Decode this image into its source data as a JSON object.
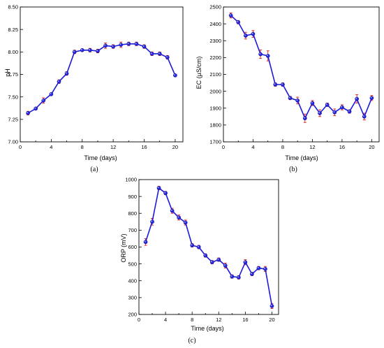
{
  "colors": {
    "line": "#1a1adb",
    "marker": "#2626e0",
    "error": "#e0201a",
    "axis": "#000000"
  },
  "chart_data": [
    {
      "id": "a",
      "type": "line",
      "panel_label": "(a)",
      "title": "",
      "xlabel": "Time (days)",
      "ylabel": "pH",
      "xlim": [
        0,
        21
      ],
      "ylim": [
        7.0,
        8.5
      ],
      "xticks": [
        0,
        4,
        8,
        12,
        16,
        20
      ],
      "yticks": [
        7.0,
        7.25,
        7.5,
        7.75,
        8.0,
        8.25,
        8.5
      ],
      "ytick_labels": [
        "7.00",
        "7.25",
        "7.50",
        "7.75",
        "8.00",
        "8.25",
        "8.50"
      ],
      "grid": false,
      "legend": "none",
      "series": [
        {
          "x": [
            1,
            2,
            3,
            4,
            5,
            6,
            7,
            8,
            9,
            10,
            11,
            12,
            13,
            14,
            15,
            16,
            17,
            18,
            19,
            20
          ],
          "values": [
            7.32,
            7.37,
            7.46,
            7.53,
            7.67,
            7.76,
            8.0,
            8.02,
            8.02,
            8.01,
            8.07,
            8.06,
            8.08,
            8.09,
            8.09,
            8.06,
            7.98,
            7.98,
            7.94,
            7.74
          ],
          "error": [
            0.02,
            0.01,
            0.03,
            0.01,
            0.02,
            0.02,
            0.02,
            0.01,
            0.02,
            0.02,
            0.03,
            0.02,
            0.03,
            0.02,
            0.02,
            0.02,
            0.02,
            0.02,
            0.02,
            0.01
          ]
        }
      ]
    },
    {
      "id": "b",
      "type": "line",
      "panel_label": "(b)",
      "title": "",
      "xlabel": "Time (days)",
      "ylabel": "EC (µS/cm)",
      "xlim": [
        0,
        21
      ],
      "ylim": [
        1700,
        2500
      ],
      "xticks": [
        0,
        4,
        8,
        12,
        16,
        20
      ],
      "yticks": [
        1700,
        1800,
        1900,
        2000,
        2100,
        2200,
        2300,
        2400,
        2500
      ],
      "ytick_labels": [
        "1700",
        "1800",
        "1900",
        "2000",
        "2100",
        "2200",
        "2300",
        "2400",
        "2500"
      ],
      "grid": false,
      "legend": "none",
      "series": [
        {
          "x": [
            1,
            2,
            3,
            4,
            5,
            6,
            7,
            8,
            9,
            10,
            11,
            12,
            13,
            14,
            15,
            16,
            17,
            18,
            19,
            20
          ],
          "values": [
            2450,
            2410,
            2330,
            2340,
            2220,
            2210,
            2040,
            2040,
            1960,
            1945,
            1840,
            1930,
            1870,
            1920,
            1875,
            1905,
            1880,
            1955,
            1850,
            1960
          ],
          "error": [
            15,
            10,
            20,
            20,
            25,
            30,
            10,
            10,
            10,
            20,
            25,
            15,
            20,
            10,
            20,
            15,
            10,
            25,
            20,
            15
          ]
        }
      ]
    },
    {
      "id": "c",
      "type": "line",
      "panel_label": "(c)",
      "title": "",
      "xlabel": "Time (days)",
      "ylabel": "ORP (mV)",
      "xlim": [
        0,
        21
      ],
      "ylim": [
        200,
        1000
      ],
      "xticks": [
        0,
        4,
        8,
        12,
        16,
        20
      ],
      "yticks": [
        200,
        300,
        400,
        500,
        600,
        700,
        800,
        900,
        1000
      ],
      "ytick_labels": [
        "200",
        "300",
        "400",
        "500",
        "600",
        "700",
        "800",
        "900",
        "1000"
      ],
      "grid": false,
      "legend": "none",
      "series": [
        {
          "x": [
            1,
            2,
            3,
            4,
            5,
            6,
            7,
            8,
            9,
            10,
            11,
            12,
            13,
            14,
            15,
            16,
            17,
            18,
            19,
            20
          ],
          "values": [
            630,
            750,
            950,
            920,
            815,
            775,
            745,
            610,
            600,
            550,
            510,
            525,
            490,
            425,
            420,
            510,
            440,
            475,
            470,
            250
          ],
          "error": [
            20,
            20,
            10,
            10,
            15,
            15,
            15,
            10,
            10,
            10,
            10,
            10,
            15,
            10,
            10,
            15,
            10,
            10,
            15,
            15
          ]
        }
      ]
    }
  ]
}
